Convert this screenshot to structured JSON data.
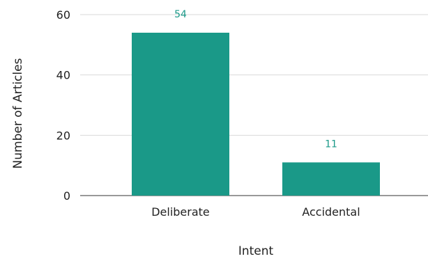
{
  "chart_data": {
    "type": "bar",
    "categories": [
      "Deliberate",
      "Accidental"
    ],
    "values": [
      54,
      11
    ],
    "data_labels": [
      "54",
      "11"
    ],
    "xlabel": "Intent",
    "ylabel": "Number of Articles",
    "ylim": [
      0,
      60
    ],
    "yticks": [
      0,
      20,
      40,
      60
    ],
    "ytick_labels": [
      "0",
      "20",
      "40",
      "60"
    ],
    "grid": true,
    "legend": "none",
    "colors": {
      "bar": "#1a9988",
      "data_label": "#1a9988",
      "gridline": "#d9d9d9",
      "axis_text": "#222222"
    }
  }
}
